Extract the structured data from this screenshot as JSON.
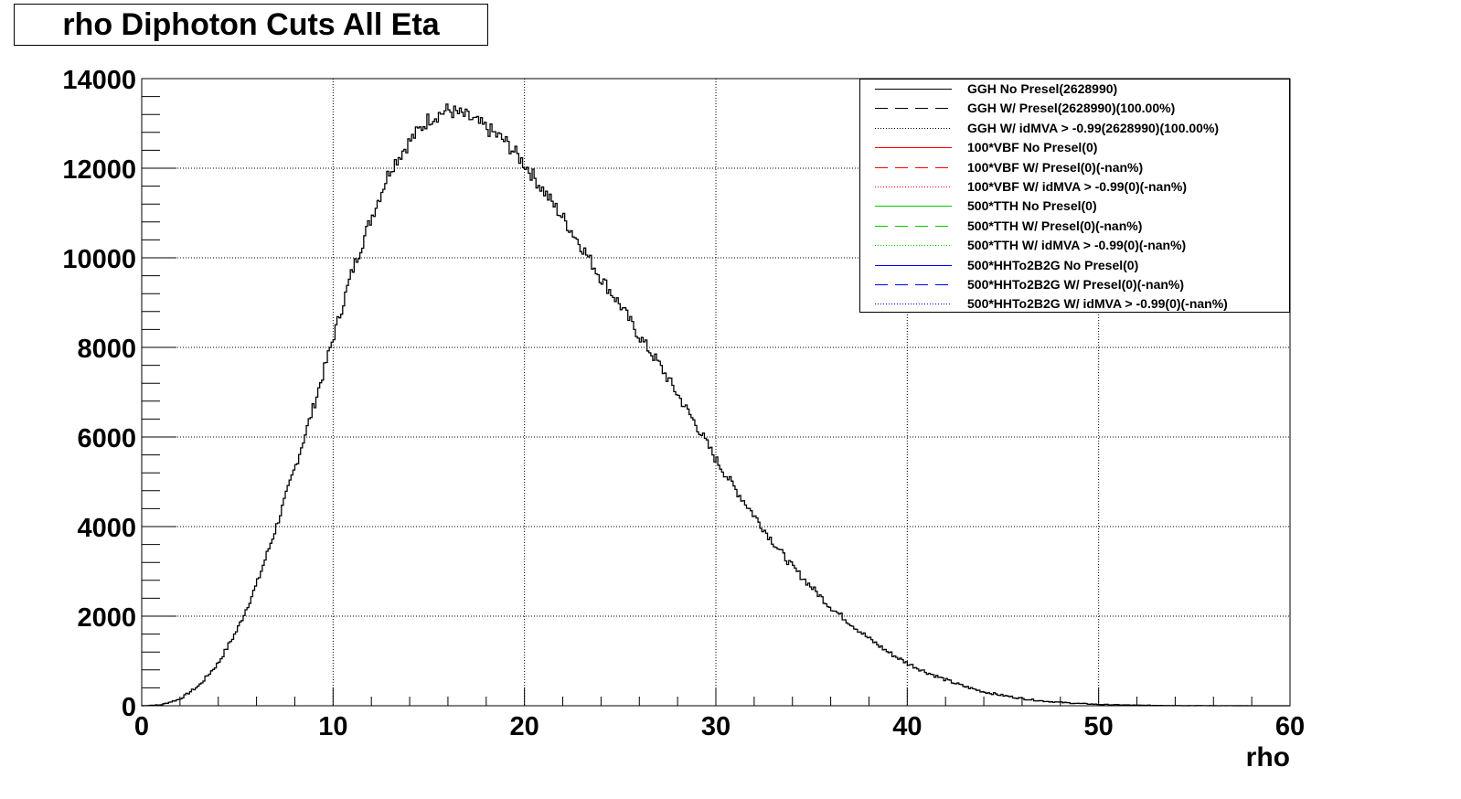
{
  "chart_data": {
    "type": "histogram",
    "title": "rho Diphoton Cuts All Eta",
    "xlabel": "rho",
    "ylabel": "",
    "xlim": [
      0,
      60
    ],
    "ylim": [
      0,
      14000
    ],
    "x_ticks": [
      "0",
      "10",
      "20",
      "30",
      "40",
      "50",
      "60"
    ],
    "y_ticks": [
      "0",
      "2000",
      "4000",
      "6000",
      "8000",
      "10000",
      "12000",
      "14000"
    ],
    "grid": true,
    "legend_position": "top-right",
    "series": [
      {
        "name": "GGH No Presel(2628990)",
        "color": "#000000",
        "style": "solid",
        "x": [
          0,
          1,
          2,
          3,
          4,
          5,
          6,
          7,
          8,
          9,
          10,
          11,
          12,
          13,
          14,
          15,
          16,
          17,
          18,
          19,
          20,
          21,
          22,
          23,
          24,
          25,
          26,
          27,
          28,
          29,
          30,
          31,
          32,
          33,
          34,
          35,
          36,
          37,
          38,
          39,
          40,
          41,
          42,
          43,
          44,
          45,
          46,
          47,
          48,
          49,
          50,
          51,
          52,
          53,
          54,
          55,
          56,
          57,
          58,
          59,
          60
        ],
        "y": [
          0,
          20,
          150,
          450,
          950,
          1700,
          2700,
          3950,
          5300,
          6700,
          8200,
          9700,
          10900,
          12000,
          12600,
          13100,
          13300,
          13150,
          12900,
          12600,
          12100,
          11500,
          10900,
          10250,
          9550,
          8950,
          8250,
          7650,
          6950,
          6250,
          5500,
          4850,
          4250,
          3650,
          3100,
          2650,
          2200,
          1850,
          1500,
          1200,
          950,
          750,
          580,
          430,
          310,
          230,
          160,
          110,
          75,
          50,
          30,
          20,
          12,
          8,
          5,
          3,
          2,
          1,
          0,
          0,
          0
        ]
      },
      {
        "name": "GGH W/ Presel(2628990)(100.00%)",
        "color": "#000000",
        "style": "dashed"
      },
      {
        "name": "GGH W/ idMVA > -0.99(2628990)(100.00%)",
        "color": "#000000",
        "style": "dotted"
      },
      {
        "name": "100*VBF No Presel(0)",
        "color": "#ff0000",
        "style": "solid"
      },
      {
        "name": "100*VBF W/ Presel(0)(-nan%)",
        "color": "#ff0000",
        "style": "dashed"
      },
      {
        "name": "100*VBF W/ idMVA > -0.99(0)(-nan%)",
        "color": "#ff0000",
        "style": "dotted"
      },
      {
        "name": "500*TTH No Presel(0)",
        "color": "#00cc00",
        "style": "solid"
      },
      {
        "name": "500*TTH W/ Presel(0)(-nan%)",
        "color": "#00cc00",
        "style": "dashed"
      },
      {
        "name": "500*TTH W/ idMVA > -0.99(0)(-nan%)",
        "color": "#00cc00",
        "style": "dotted"
      },
      {
        "name": "500*HHTo2B2G No Presel(0)",
        "color": "#0000ff",
        "style": "solid"
      },
      {
        "name": "500*HHTo2B2G W/ Presel(0)(-nan%)",
        "color": "#0000ff",
        "style": "dashed"
      },
      {
        "name": "500*HHTo2B2G W/ idMVA > -0.99(0)(-nan%)",
        "color": "#0000ff",
        "style": "dotted"
      }
    ]
  }
}
